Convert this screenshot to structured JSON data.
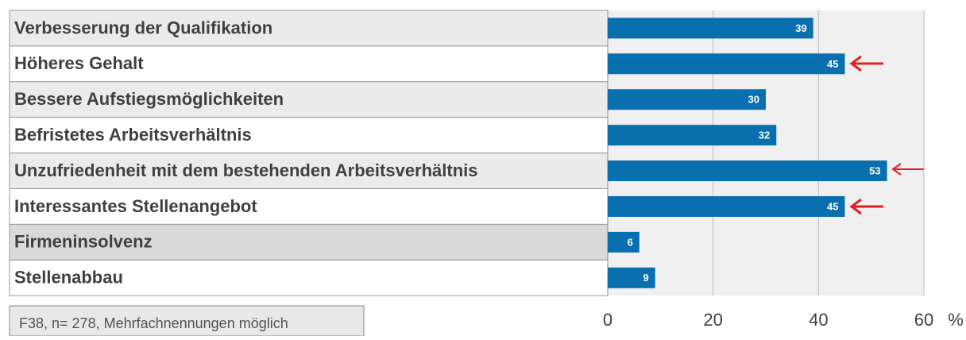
{
  "chart_data": {
    "type": "bar",
    "orientation": "horizontal",
    "categories": [
      "Verbesserung der Qualifikation",
      "Höheres Gehalt",
      "Bessere Aufstiegsmöglichkeiten",
      "Befristetes Arbeitsverhältnis",
      "Unzufriedenheit mit dem bestehenden Arbeitsverhältnis",
      "Interessantes Stellenangebot",
      "Firmeninsolvenz",
      "Stellenabbau"
    ],
    "values": [
      39,
      45,
      30,
      32,
      53,
      45,
      6,
      9
    ],
    "color": "#0a6fae",
    "xlim": [
      0,
      60
    ],
    "xticks": [
      0,
      20,
      40,
      60
    ],
    "grid": true,
    "xlabel": "%",
    "note": "F38, n= 278, Mehrfachnennungen  möglich"
  }
}
